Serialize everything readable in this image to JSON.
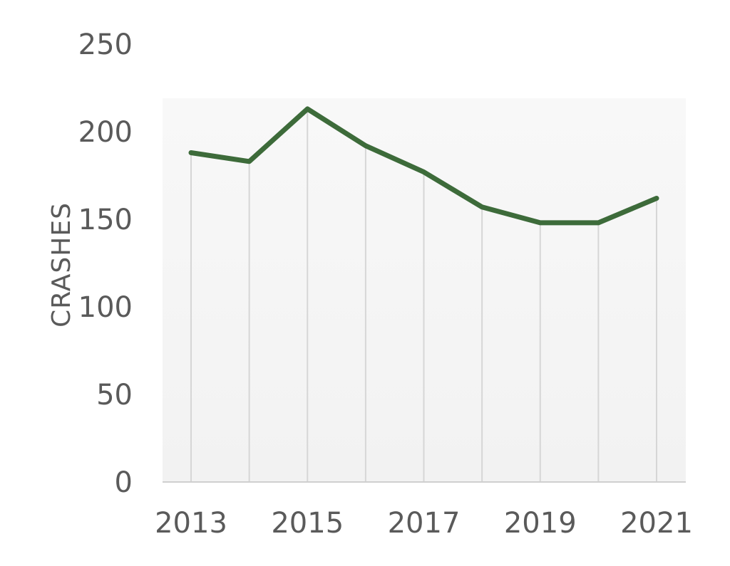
{
  "chart_data": {
    "type": "line",
    "title": "",
    "xlabel": "",
    "ylabel": "CRASHES",
    "x": [
      2013,
      2014,
      2015,
      2016,
      2017,
      2018,
      2019,
      2020,
      2021
    ],
    "x_tick_labels": [
      "2013",
      "2015",
      "2017",
      "2019",
      "2021"
    ],
    "y_tick_labels": [
      "0",
      "50",
      "100",
      "150",
      "200",
      "250"
    ],
    "ylim": [
      0,
      250
    ],
    "series": [
      {
        "values": [
          188,
          183,
          213,
          192,
          177,
          157,
          148,
          148,
          162
        ]
      }
    ],
    "grid": "vertical",
    "legend": "none",
    "colors": {
      "line": "#3d6b3a",
      "plot_bg_top": "#f7f7f7",
      "plot_bg_bottom": "#f2f2f2"
    }
  }
}
